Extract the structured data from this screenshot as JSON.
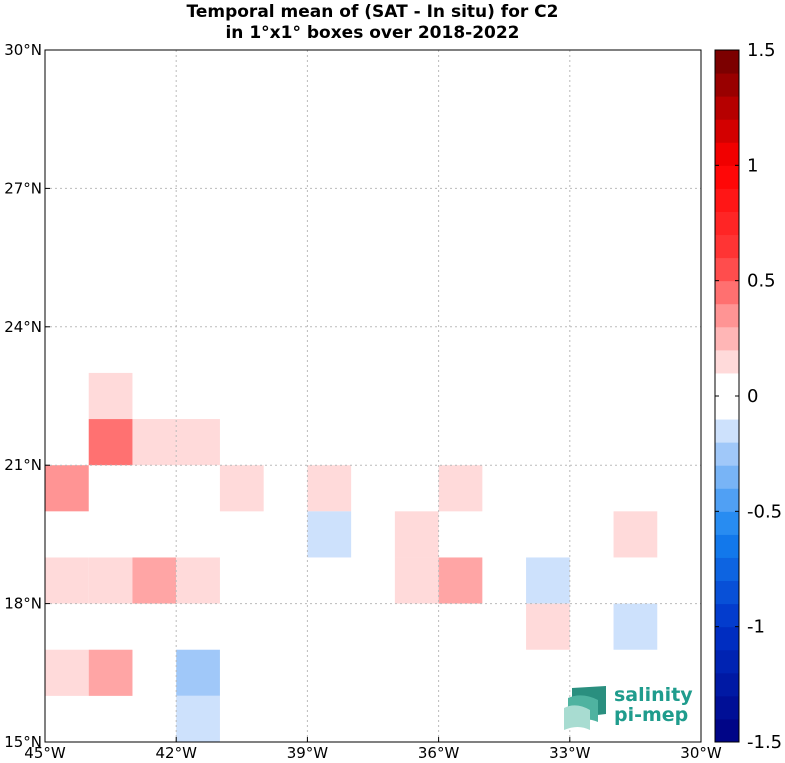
{
  "chart_data": {
    "type": "heatmap",
    "title": "Temporal mean of (SAT - In situ) for C2",
    "subtitle": "in 1°x1° boxes over 2018-2022",
    "x_ticks": [
      {
        "lon": -45,
        "label": "45°W"
      },
      {
        "lon": -42,
        "label": "42°W"
      },
      {
        "lon": -39,
        "label": "39°W"
      },
      {
        "lon": -36,
        "label": "36°W"
      },
      {
        "lon": -33,
        "label": "33°W"
      },
      {
        "lon": -30,
        "label": "30°W"
      }
    ],
    "y_ticks": [
      {
        "lat": 15,
        "label": "15°N"
      },
      {
        "lat": 18,
        "label": "18°N"
      },
      {
        "lat": 21,
        "label": "21°N"
      },
      {
        "lat": 24,
        "label": "24°N"
      },
      {
        "lat": 27,
        "label": "27°N"
      },
      {
        "lat": 30,
        "label": "30°N"
      }
    ],
    "xlim": [
      -45,
      -30
    ],
    "ylim": [
      15,
      30
    ],
    "grid": true,
    "colorbar": {
      "range": [
        -1.5,
        1.5
      ],
      "step": 0.1,
      "tick_values": [
        1.5,
        1,
        0.5,
        0,
        -0.5,
        -1,
        -1.5
      ],
      "tick_labels": [
        "1.5",
        "1",
        "0.5",
        "0",
        "-0.5",
        "-1",
        "-1.5"
      ]
    },
    "cells": [
      {
        "lon": -44,
        "lat": 22,
        "value": 0.15
      },
      {
        "lon": -44,
        "lat": 21,
        "value": 0.45
      },
      {
        "lon": -43,
        "lat": 21,
        "value": 0.15
      },
      {
        "lon": -42,
        "lat": 21,
        "value": 0.15
      },
      {
        "lon": -45,
        "lat": 20,
        "value": 0.35
      },
      {
        "lon": -41,
        "lat": 20,
        "value": 0.15
      },
      {
        "lon": -39,
        "lat": 20,
        "value": 0.15
      },
      {
        "lon": -36,
        "lat": 20,
        "value": 0.15
      },
      {
        "lon": -39,
        "lat": 19,
        "value": -0.15
      },
      {
        "lon": -37,
        "lat": 19,
        "value": 0.15
      },
      {
        "lon": -32,
        "lat": 19,
        "value": 0.15
      },
      {
        "lon": -45,
        "lat": 18,
        "value": 0.15
      },
      {
        "lon": -44,
        "lat": 18,
        "value": 0.15
      },
      {
        "lon": -43,
        "lat": 18,
        "value": 0.3
      },
      {
        "lon": -42,
        "lat": 18,
        "value": 0.15
      },
      {
        "lon": -37,
        "lat": 18,
        "value": 0.15
      },
      {
        "lon": -36,
        "lat": 18,
        "value": 0.3
      },
      {
        "lon": -34,
        "lat": 18,
        "value": -0.15
      },
      {
        "lon": -34,
        "lat": 17,
        "value": 0.15
      },
      {
        "lon": -32,
        "lat": 17,
        "value": -0.15
      },
      {
        "lon": -45,
        "lat": 16,
        "value": 0.15
      },
      {
        "lon": -44,
        "lat": 16,
        "value": 0.3
      },
      {
        "lon": -42,
        "lat": 16,
        "value": -0.25
      },
      {
        "lon": -42,
        "lat": 15,
        "value": -0.15
      }
    ]
  },
  "logo": {
    "line1": "salinity",
    "line2": "pi-mep",
    "color": "#1f9c8d"
  }
}
